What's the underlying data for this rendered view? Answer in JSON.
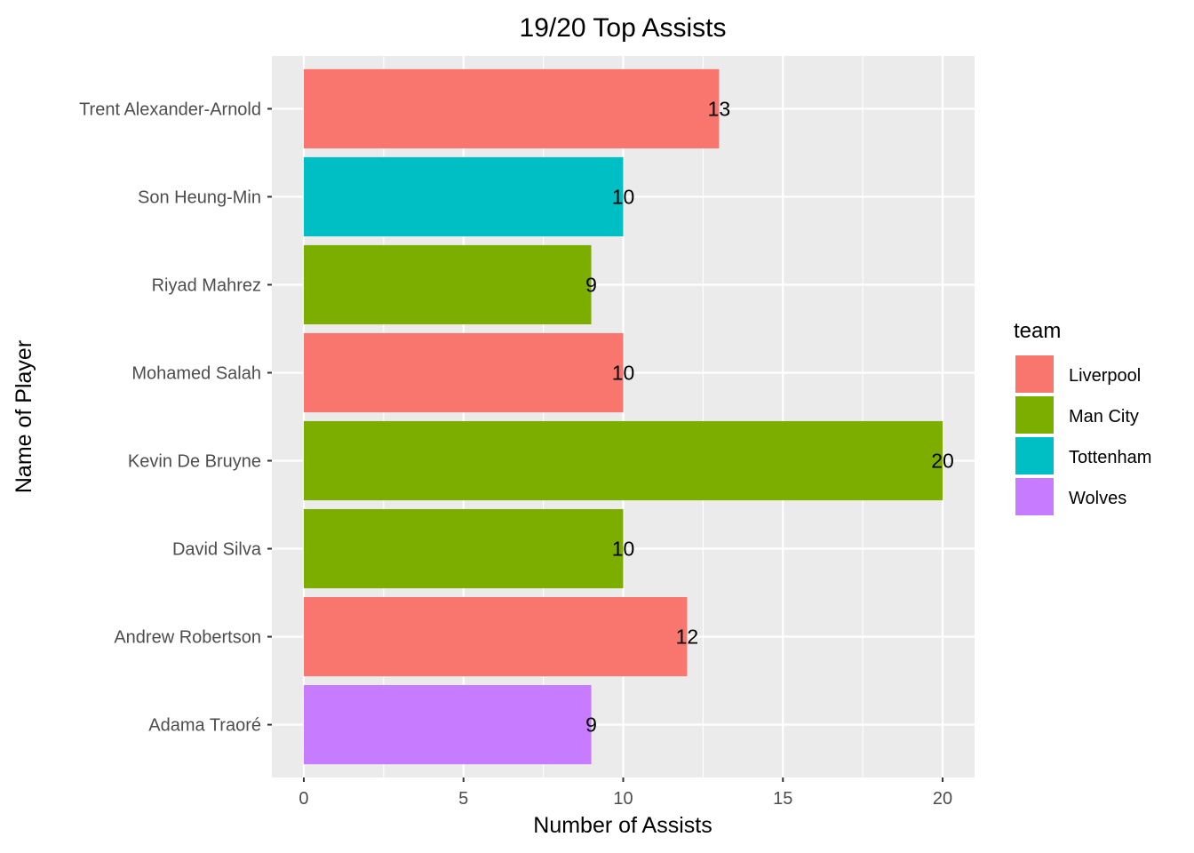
{
  "chart_data": {
    "type": "bar",
    "orientation": "horizontal",
    "title": "19/20 Top Assists",
    "xlabel": "Number of Assists",
    "ylabel": "Name of Player",
    "xlim": [
      -1.0,
      21.0
    ],
    "x_ticks": [
      0,
      5,
      10,
      15,
      20
    ],
    "grid": true,
    "categories": [
      "Adama Traoré",
      "Andrew Robertson",
      "David Silva",
      "Kevin De Bruyne",
      "Mohamed Salah",
      "Riyad Mahrez",
      "Son Heung-Min",
      "Trent Alexander-Arnold"
    ],
    "values": [
      9,
      12,
      10,
      20,
      10,
      9,
      10,
      13
    ],
    "teams": [
      "Wolves",
      "Liverpool",
      "Man City",
      "Man City",
      "Liverpool",
      "Man City",
      "Tottenham",
      "Liverpool"
    ],
    "legend": {
      "title": "team",
      "position": "right",
      "entries": [
        {
          "name": "Liverpool",
          "color": "#F8766D"
        },
        {
          "name": "Man City",
          "color": "#7CAE00"
        },
        {
          "name": "Tottenham",
          "color": "#00BFC4"
        },
        {
          "name": "Wolves",
          "color": "#C77CFF"
        }
      ]
    },
    "panel_color": "#EBEBEB",
    "grid_color": "#FFFFFF"
  }
}
